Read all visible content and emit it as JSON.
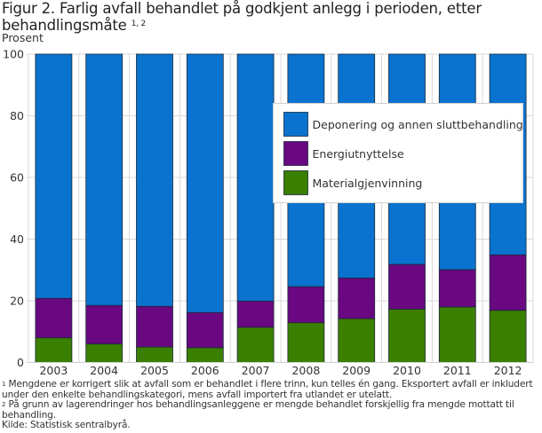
{
  "title": {
    "text": "Figur 2. Farlig avfall behandlet på godkjent anlegg i perioden, etter behandlingsmåte",
    "superscript": "1, 2"
  },
  "unit_label": "Prosent",
  "colors": {
    "Deponering og annen sluttbehandling": "#0a73cf",
    "Energiutnyttelse": "#690880",
    "Materialgjenvinning": "#3b7f00",
    "bar_border": "#1b2a3a",
    "grid": "#d9d9d9"
  },
  "chart_data": {
    "type": "bar",
    "stacked": true,
    "title": "Figur 2. Farlig avfall behandlet på godkjent anlegg i perioden, etter behandlingsmåte",
    "xlabel": "",
    "ylabel": "Prosent",
    "ylim": [
      0,
      100
    ],
    "yticks": [
      0,
      20,
      40,
      60,
      80,
      100
    ],
    "grid": true,
    "legend_position": "top-right",
    "categories": [
      "2003",
      "2004",
      "2005",
      "2006",
      "2007",
      "2008",
      "2009",
      "2010",
      "2011",
      "2012"
    ],
    "series": [
      {
        "name": "Materialgjenvinning",
        "values": [
          8.0,
          6.0,
          5.0,
          4.8,
          11.4,
          12.9,
          14.2,
          17.3,
          18.0,
          16.9
        ]
      },
      {
        "name": "Energiutnyttelse",
        "values": [
          12.8,
          12.5,
          13.2,
          11.4,
          8.5,
          11.7,
          13.2,
          14.5,
          12.1,
          18.0
        ]
      },
      {
        "name": "Deponering og annen sluttbehandling",
        "values": [
          79.2,
          81.5,
          81.8,
          83.8,
          80.1,
          75.4,
          72.6,
          68.2,
          69.9,
          65.1
        ]
      }
    ],
    "legend_order": [
      "Deponering og annen sluttbehandling",
      "Energiutnyttelse",
      "Materialgjenvinning"
    ]
  },
  "footnotes": [
    {
      "marker": "1",
      "text": "Mengdene er korrigert slik at avfall som er behandlet i flere trinn, kun telles én gang. Eksportert avfall er inkludert"
    },
    {
      "marker": "",
      "text": "under den enkelte behandlingskategori, mens avfall importert fra utlandet er utelatt."
    },
    {
      "marker": "2",
      "text": "På grunn av lagerendringer hos behandlingsanleggene er mengde behandlet forskjellig fra mengde mottatt til"
    },
    {
      "marker": "",
      "text": "behandling."
    },
    {
      "marker": "",
      "text": "Kilde: Statistisk sentralbyrå."
    }
  ]
}
